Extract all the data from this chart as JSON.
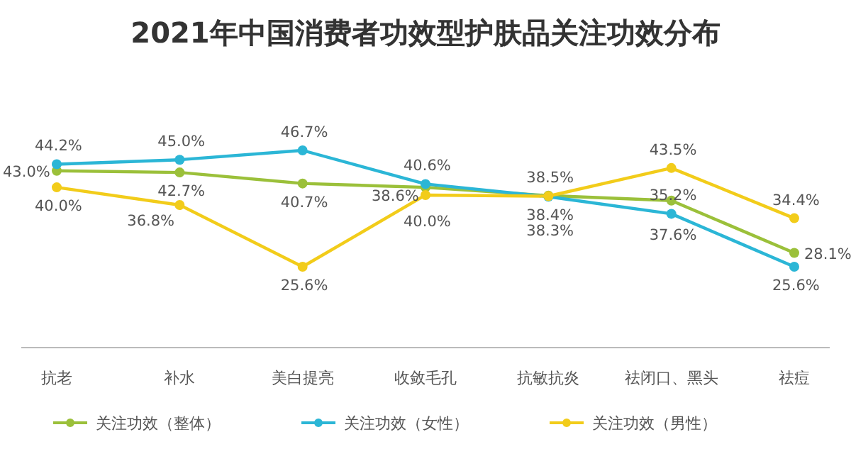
{
  "chart_data": {
    "type": "line",
    "title": "2021年中国消费者功效型护肤品关注功效分布",
    "categories": [
      "抗老",
      "补水",
      "美白提亮",
      "收敛毛孔",
      "抗敏抗炎",
      "祛闭口、黑头",
      "祛痘"
    ],
    "legend": "bottom",
    "marker": "circle",
    "series": [
      {
        "name": "关注功效（整体）",
        "color": "#9bc03a",
        "values": [
          43.0,
          42.7,
          40.7,
          40.0,
          38.5,
          37.6,
          28.1
        ],
        "value_labels": [
          "43.0%",
          "42.7%",
          "40.7%",
          "40.0%",
          "38.5%",
          "37.6%",
          "28.1%"
        ]
      },
      {
        "name": "关注功效（女性）",
        "color": "#2bb6d6",
        "values": [
          44.2,
          45.0,
          46.7,
          40.6,
          38.3,
          35.2,
          25.6
        ],
        "value_labels": [
          "44.2%",
          "45.0%",
          "46.7%",
          "40.6%",
          "38.3%",
          "35.2%",
          "25.6%"
        ]
      },
      {
        "name": "关注功效（男性）",
        "color": "#f2cc1a",
        "values": [
          40.0,
          36.8,
          25.6,
          38.6,
          38.4,
          43.5,
          34.4
        ],
        "value_labels": [
          "40.0%",
          "36.8%",
          "25.6%",
          "38.6%",
          "38.4%",
          "43.5%",
          "34.4%"
        ]
      }
    ]
  }
}
